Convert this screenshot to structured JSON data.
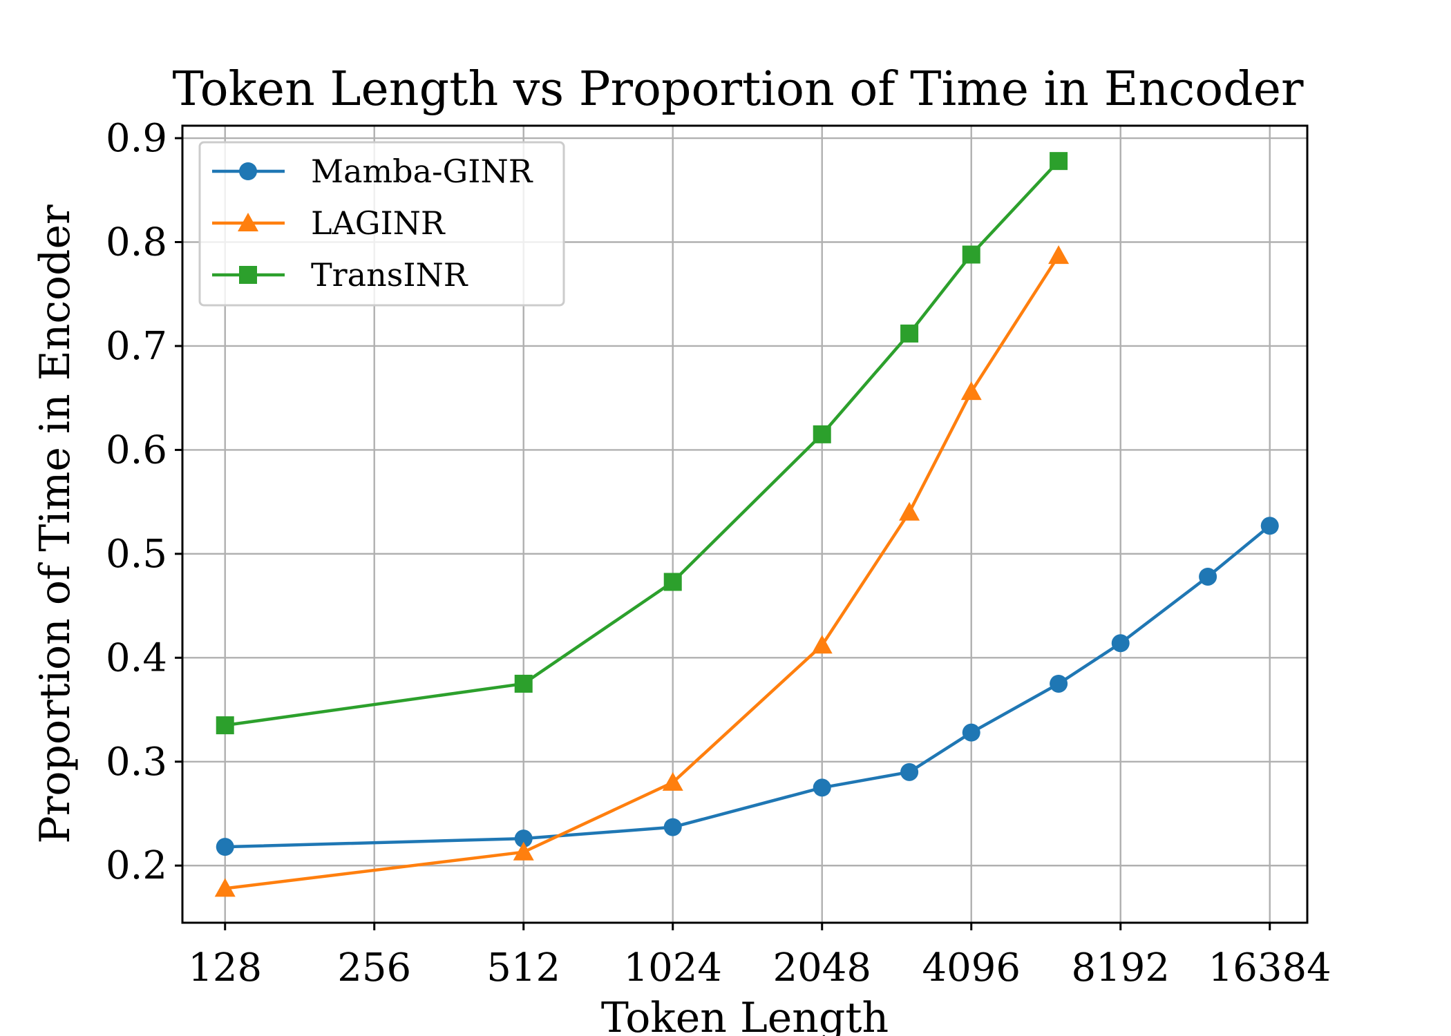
{
  "chart_data": {
    "type": "line",
    "title": "Token Length vs Proportion of Time in Encoder",
    "xlabel": "Token Length",
    "ylabel": "Proportion of Time in Encoder",
    "xscale": "log2",
    "xticks": [
      128,
      256,
      512,
      1024,
      2048,
      4096,
      8192,
      16384
    ],
    "xtick_labels": [
      "128",
      "256",
      "512",
      "1024",
      "2048",
      "4096",
      "8192",
      "16384"
    ],
    "yticks": [
      0.2,
      0.3,
      0.4,
      0.5,
      0.6,
      0.7,
      0.8,
      0.9
    ],
    "ytick_labels": [
      "0.2",
      "0.3",
      "0.4",
      "0.5",
      "0.6",
      "0.7",
      "0.8",
      "0.9"
    ],
    "xlim": [
      105,
      19500
    ],
    "ylim": [
      0.145,
      0.912
    ],
    "grid": true,
    "legend_position": "top-left",
    "series": [
      {
        "name": "Mamba-GINR",
        "color": "#1f77b4",
        "marker": "circle",
        "x": [
          128,
          512,
          1024,
          2048,
          3072,
          4096,
          6144,
          8192,
          12288,
          16384
        ],
        "y": [
          0.218,
          0.226,
          0.237,
          0.275,
          0.29,
          0.328,
          0.375,
          0.414,
          0.478,
          0.527
        ]
      },
      {
        "name": "LAGINR",
        "color": "#ff7f0e",
        "marker": "triangle",
        "x": [
          128,
          512,
          1024,
          2048,
          3072,
          4096,
          6144
        ],
        "y": [
          0.178,
          0.213,
          0.28,
          0.412,
          0.54,
          0.656,
          0.787
        ]
      },
      {
        "name": "TransINR",
        "color": "#2ca02c",
        "marker": "square",
        "x": [
          128,
          512,
          1024,
          2048,
          3072,
          4096,
          6144
        ],
        "y": [
          0.335,
          0.375,
          0.473,
          0.615,
          0.712,
          0.788,
          0.878
        ]
      }
    ]
  }
}
